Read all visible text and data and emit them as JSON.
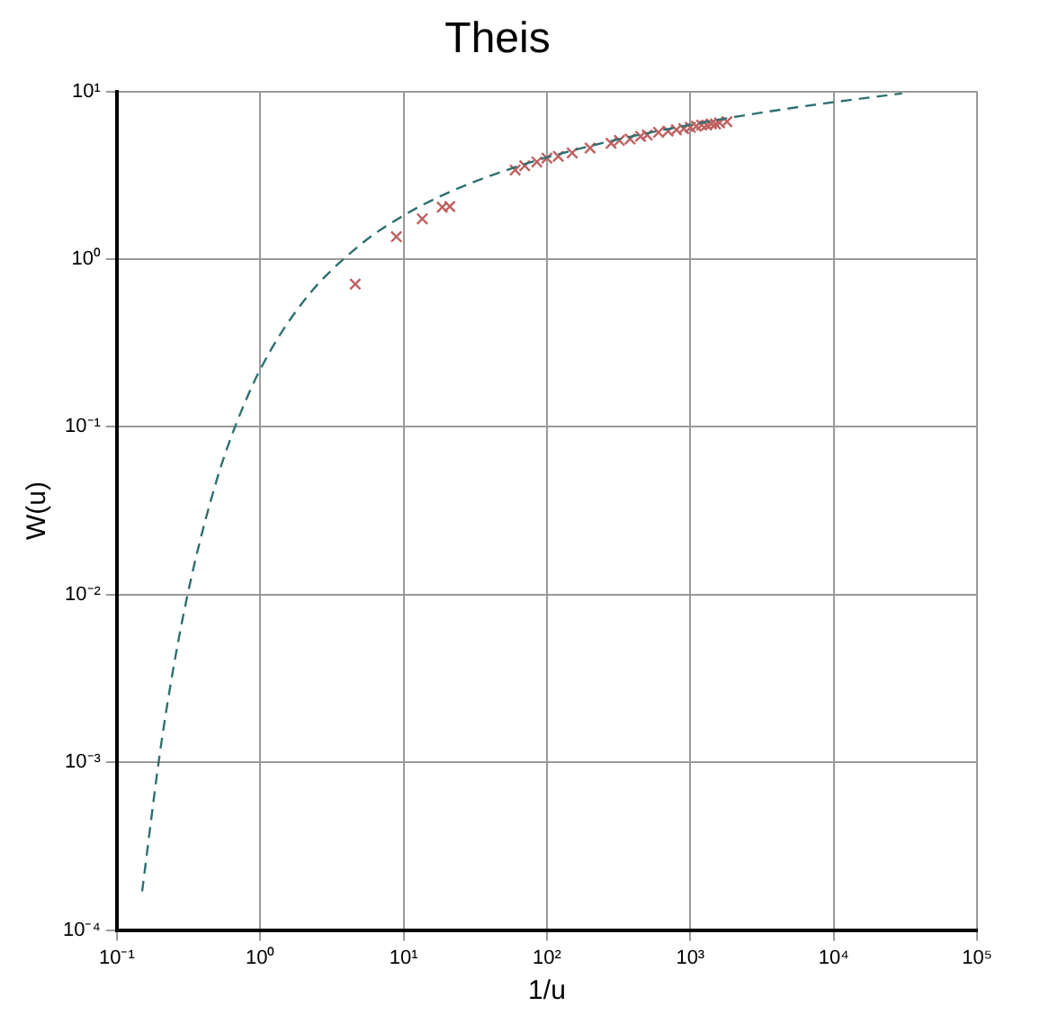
{
  "chart_data": {
    "type": "line",
    "title": "Theis",
    "xlabel": "1/u",
    "ylabel": "W(u)",
    "log": "xy",
    "grid": true,
    "xlim": [
      0.1,
      100000
    ],
    "ylim": [
      0.0001,
      10
    ],
    "xticks": [
      {
        "value": 0.1,
        "label": "10⁻¹"
      },
      {
        "value": 1,
        "label": "10⁰"
      },
      {
        "value": 10,
        "label": "10¹"
      },
      {
        "value": 100,
        "label": "10²"
      },
      {
        "value": 1000,
        "label": "10³"
      },
      {
        "value": 10000,
        "label": "10⁴"
      },
      {
        "value": 100000,
        "label": "10⁵"
      }
    ],
    "yticks": [
      {
        "value": 0.0001,
        "label": "10⁻⁴"
      },
      {
        "value": 0.001,
        "label": "10⁻³"
      },
      {
        "value": 0.01,
        "label": "10⁻²"
      },
      {
        "value": 0.1,
        "label": "10⁻¹"
      },
      {
        "value": 1,
        "label": "10⁰"
      },
      {
        "value": 10,
        "label": "10¹"
      }
    ],
    "series": [
      {
        "color": "#2f7070",
        "marker": "none",
        "line_style": "dashed",
        "x": [
          0.15,
          0.2,
          0.25,
          0.333,
          0.5,
          0.667,
          1,
          2,
          5,
          10,
          20,
          50,
          100,
          300,
          1000,
          3000,
          10000,
          30000
        ],
        "values": [
          0.00017,
          0.00115,
          0.0038,
          0.013,
          0.049,
          0.1,
          0.22,
          0.56,
          1.22,
          1.82,
          2.47,
          3.35,
          4.04,
          5.13,
          6.33,
          7.43,
          8.63,
          9.73
        ]
      },
      {
        "type": "scatter",
        "color": "#c06060",
        "marker": "cross",
        "x": [
          4.6,
          8.9,
          13.5,
          18.6,
          21,
          60,
          70,
          85,
          100,
          120,
          150,
          200,
          280,
          320,
          380,
          450,
          500,
          600,
          700,
          800,
          900,
          1000,
          1100,
          1200,
          1300,
          1400,
          1500,
          1600,
          1800
        ],
        "values": [
          0.71,
          1.36,
          1.74,
          2.04,
          2.06,
          3.4,
          3.6,
          3.8,
          4.0,
          4.1,
          4.3,
          4.6,
          4.9,
          5.1,
          5.2,
          5.4,
          5.5,
          5.7,
          5.8,
          5.9,
          6.0,
          6.1,
          6.2,
          6.3,
          6.3,
          6.4,
          6.4,
          6.5,
          6.6
        ]
      }
    ]
  }
}
